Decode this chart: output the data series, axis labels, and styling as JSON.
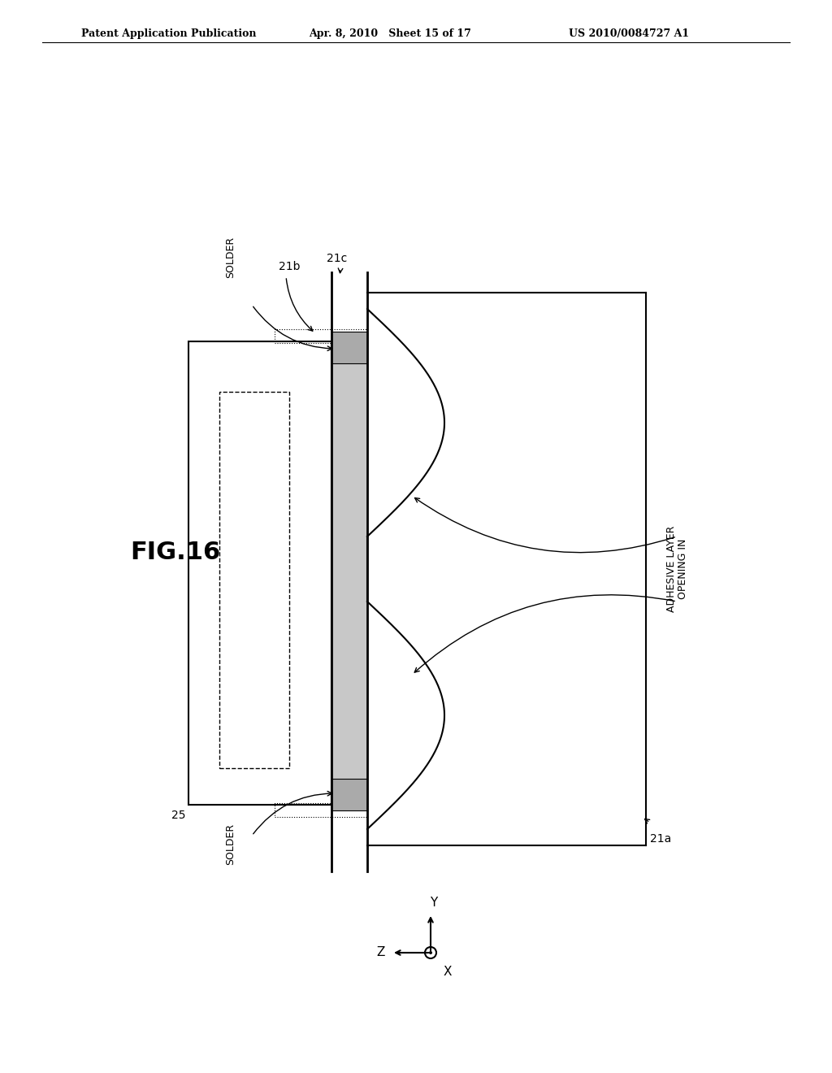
{
  "header_left": "Patent Application Publication",
  "header_mid": "Apr. 8, 2010   Sheet 15 of 17",
  "header_right": "US 2010/0084727 A1",
  "fig_label": "FIG.16",
  "label_21a": "21a",
  "label_21b": "21b",
  "label_21c": "21c",
  "label_25": "25",
  "label_solder_top": "SOLDER",
  "label_solder_bot": "SOLDER",
  "label_opening_1": "OPENING IN",
  "label_opening_2": "ADHESIVE LAYER",
  "bg_color": "#ffffff",
  "line_color": "#000000",
  "gray_color": "#aaaaaa"
}
